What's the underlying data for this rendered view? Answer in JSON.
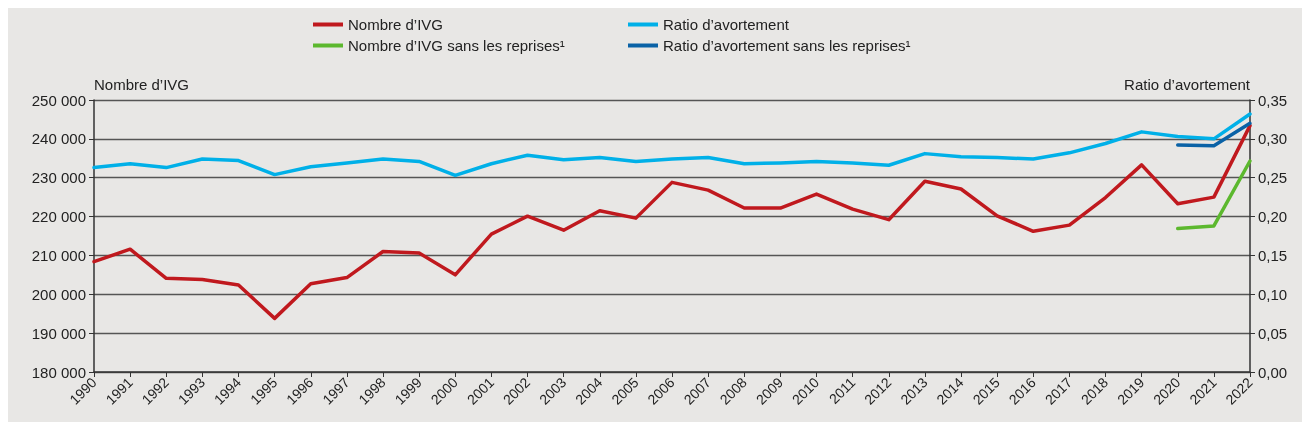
{
  "chart_data": {
    "type": "line",
    "categories": [
      "1990",
      "1991",
      "1992",
      "1993",
      "1994",
      "1995",
      "1996",
      "1997",
      "1998",
      "1999",
      "2000",
      "2001",
      "2002",
      "2003",
      "2004",
      "2005",
      "2006",
      "2007",
      "2008",
      "2009",
      "2010",
      "2011",
      "2012",
      "2013",
      "2014",
      "2015",
      "2016",
      "2017",
      "2018",
      "2019",
      "2020",
      "2021",
      "2022"
    ],
    "ylabel": "Nombre d’IVG",
    "y2label": "Ratio d’avortement",
    "series": [
      {
        "name": "Nombre d’IVG",
        "color": "#c0191e",
        "values": [
          208400,
          211600,
          204100,
          203800,
          202400,
          193800,
          202700,
          204300,
          211000,
          210600,
          205000,
          215500,
          220100,
          216500,
          221500,
          219600,
          228800,
          226800,
          222200,
          222200,
          225800,
          221900,
          219200,
          229100,
          227100,
          220200,
          216200,
          217800,
          224900,
          233300,
          223300,
          225000,
          243400
        ]
      },
      {
        "name": "Ratio d’avortement",
        "color": "#00b0e8",
        "axis": "y2",
        "values": [
          0.263,
          0.268,
          0.263,
          0.274,
          0.272,
          0.254,
          0.264,
          0.269,
          0.274,
          0.271,
          0.253,
          0.268,
          0.279,
          0.273,
          0.276,
          0.271,
          0.274,
          0.276,
          0.268,
          0.269,
          0.271,
          0.269,
          0.266,
          0.281,
          0.277,
          0.276,
          0.274,
          0.282,
          0.294,
          0.309,
          0.303,
          0.3,
          0.332
        ]
      },
      {
        "name": "Nombre d’IVG sans les reprises¹",
        "color": "#5cb82e",
        "values": [
          null,
          null,
          null,
          null,
          null,
          null,
          null,
          null,
          null,
          null,
          null,
          null,
          null,
          null,
          null,
          null,
          null,
          null,
          null,
          null,
          null,
          null,
          null,
          null,
          null,
          null,
          null,
          null,
          null,
          null,
          216900,
          217600,
          234300
        ]
      },
      {
        "name": "Ratio d’avortement sans les reprises¹",
        "color": "#0a62a6",
        "axis": "y2",
        "values": [
          null,
          null,
          null,
          null,
          null,
          null,
          null,
          null,
          null,
          null,
          null,
          null,
          null,
          null,
          null,
          null,
          null,
          null,
          null,
          null,
          null,
          null,
          null,
          null,
          null,
          null,
          null,
          null,
          null,
          null,
          0.292,
          0.291,
          0.32
        ]
      }
    ],
    "ylim": [
      180000,
      250000
    ],
    "yticks": [
      {
        "value": 180000,
        "label": "180 000"
      },
      {
        "value": 190000,
        "label": "190 000"
      },
      {
        "value": 200000,
        "label": "200 000"
      },
      {
        "value": 210000,
        "label": "210 000"
      },
      {
        "value": 220000,
        "label": "220 000"
      },
      {
        "value": 230000,
        "label": "230 000"
      },
      {
        "value": 240000,
        "label": "240 000"
      },
      {
        "value": 250000,
        "label": "250 000"
      }
    ],
    "y2lim": [
      0,
      0.35
    ],
    "y2ticks": [
      {
        "value": 0,
        "label": "0,00"
      },
      {
        "value": 0.05,
        "label": "0,05"
      },
      {
        "value": 0.1,
        "label": "0,10"
      },
      {
        "value": 0.15,
        "label": "0,15"
      },
      {
        "value": 0.2,
        "label": "0,20"
      },
      {
        "value": 0.25,
        "label": "0,25"
      },
      {
        "value": 0.3,
        "label": "0,30"
      },
      {
        "value": 0.35,
        "label": "0,35"
      }
    ],
    "grid": "y",
    "legend": "top",
    "marker": "none",
    "line_style": "solid"
  }
}
